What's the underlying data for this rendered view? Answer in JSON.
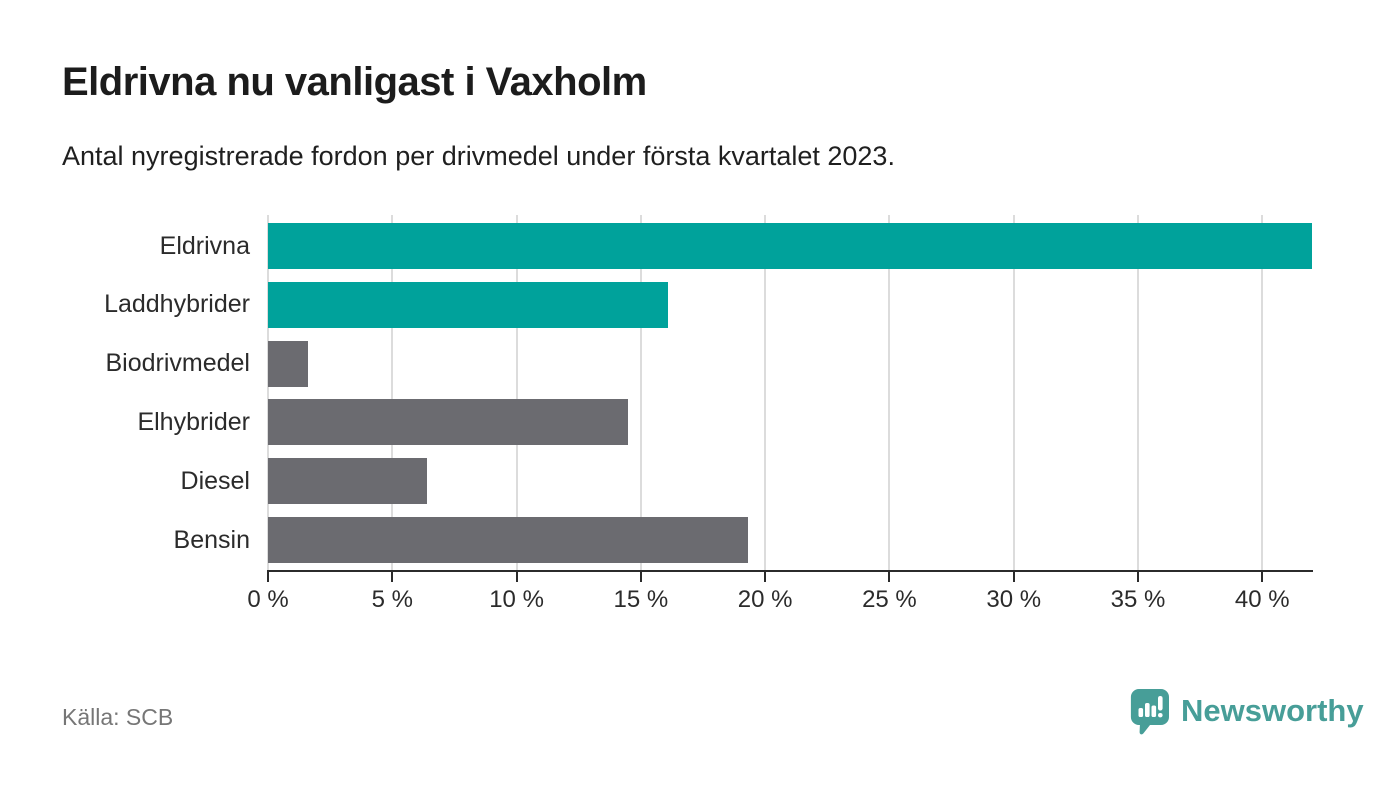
{
  "header": {
    "title": "Eldrivna nu vanligast i Vaxholm",
    "subtitle": "Antal nyregistrerade fordon per drivmedel under första kvartalet 2023."
  },
  "chart_data": {
    "type": "bar",
    "orientation": "horizontal",
    "title": "Eldrivna nu vanligast i Vaxholm",
    "subtitle": "Antal nyregistrerade fordon per drivmedel under första kvartalet 2023.",
    "categories": [
      "Eldrivna",
      "Laddhybrider",
      "Biodrivmedel",
      "Elhybrider",
      "Diesel",
      "Bensin"
    ],
    "values": [
      42.0,
      16.1,
      1.6,
      14.5,
      6.4,
      19.3
    ],
    "bar_colors": [
      "#00a29b",
      "#00a29b",
      "#6b6b70",
      "#6b6b70",
      "#6b6b70",
      "#6b6b70"
    ],
    "xlabel": "",
    "ylabel": "",
    "xlim": [
      0,
      42
    ],
    "x_ticks": [
      0,
      5,
      10,
      15,
      20,
      25,
      30,
      35,
      40
    ],
    "x_tick_suffix": " %",
    "grid": true,
    "legend": false,
    "unit": "percent"
  },
  "footer": {
    "source": "Källa: SCB",
    "logo_text": "Newsworthy"
  },
  "colors": {
    "accent_teal": "#00a29b",
    "neutral_gray": "#6b6b70",
    "gridline": "#dcdcdc",
    "axis": "#2b2b2b",
    "logo_teal": "#479e98",
    "source_gray": "#767676"
  }
}
